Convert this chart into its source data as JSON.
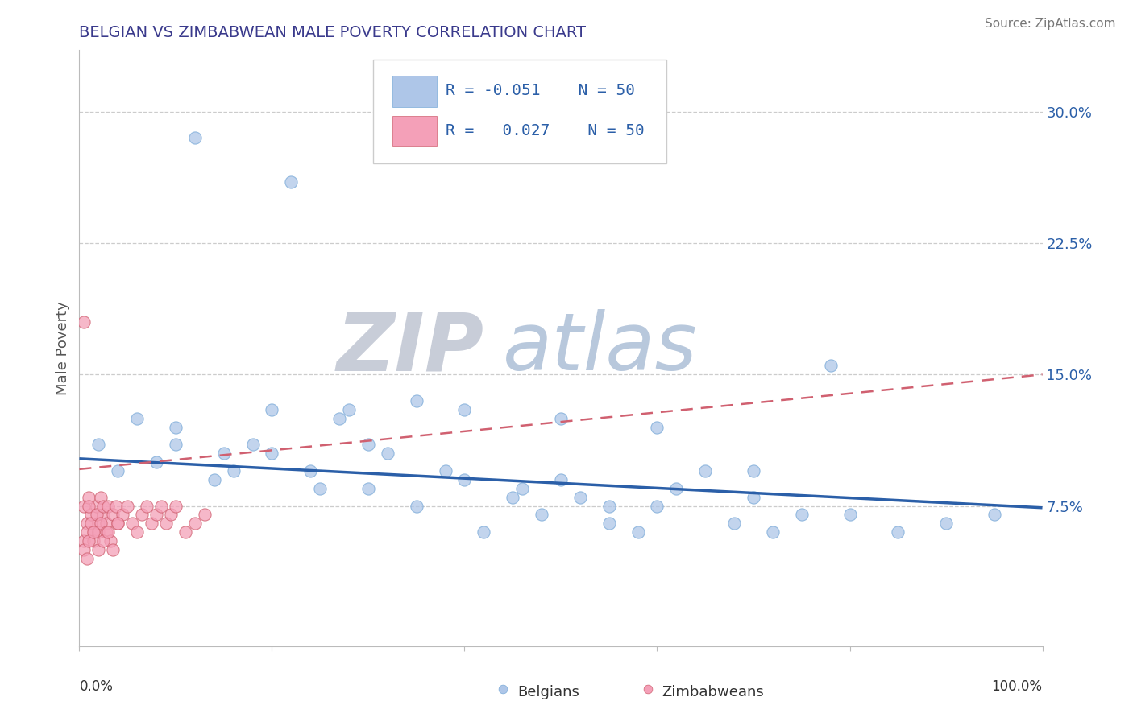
{
  "title": "BELGIAN VS ZIMBABWEAN MALE POVERTY CORRELATION CHART",
  "source_text": "Source: ZipAtlas.com",
  "ylabel": "Male Poverty",
  "yticks": [
    0.075,
    0.15,
    0.225,
    0.3
  ],
  "ytick_labels": [
    "7.5%",
    "15.0%",
    "22.5%",
    "30.0%"
  ],
  "xlim": [
    0.0,
    1.0
  ],
  "ylim": [
    -0.005,
    0.335
  ],
  "blue_color": "#AEC6E8",
  "pink_color": "#F4A0B8",
  "blue_line_color": "#2B5FA8",
  "pink_line_color": "#D06070",
  "title_color": "#3A3A8C",
  "source_color": "#777777",
  "watermark_zip": "ZIP",
  "watermark_atlas": "atlas",
  "watermark_zip_color": "#C8CDD8",
  "watermark_atlas_color": "#B8C8DC",
  "grid_color": "#CCCCCC",
  "tick_color": "#2B5FA8",
  "belgian_x": [
    0.02,
    0.04,
    0.06,
    0.08,
    0.1,
    0.12,
    0.14,
    0.16,
    0.18,
    0.2,
    0.22,
    0.24,
    0.25,
    0.27,
    0.28,
    0.3,
    0.32,
    0.35,
    0.38,
    0.4,
    0.42,
    0.45,
    0.46,
    0.48,
    0.5,
    0.52,
    0.55,
    0.58,
    0.6,
    0.62,
    0.65,
    0.68,
    0.7,
    0.72,
    0.75,
    0.78,
    0.8,
    0.85,
    0.9,
    0.95,
    0.1,
    0.15,
    0.2,
    0.3,
    0.35,
    0.4,
    0.5,
    0.55,
    0.6,
    0.7
  ],
  "belgian_y": [
    0.11,
    0.095,
    0.125,
    0.1,
    0.11,
    0.285,
    0.09,
    0.095,
    0.11,
    0.105,
    0.26,
    0.095,
    0.085,
    0.125,
    0.13,
    0.085,
    0.105,
    0.075,
    0.095,
    0.09,
    0.06,
    0.08,
    0.085,
    0.07,
    0.09,
    0.08,
    0.065,
    0.06,
    0.075,
    0.085,
    0.095,
    0.065,
    0.08,
    0.06,
    0.07,
    0.155,
    0.07,
    0.06,
    0.065,
    0.07,
    0.12,
    0.105,
    0.13,
    0.11,
    0.135,
    0.13,
    0.125,
    0.075,
    0.12,
    0.095
  ],
  "zimb_x": [
    0.005,
    0.008,
    0.01,
    0.012,
    0.015,
    0.018,
    0.02,
    0.022,
    0.025,
    0.028,
    0.005,
    0.008,
    0.01,
    0.012,
    0.015,
    0.018,
    0.02,
    0.022,
    0.025,
    0.028,
    0.03,
    0.032,
    0.035,
    0.038,
    0.04,
    0.045,
    0.05,
    0.055,
    0.06,
    0.065,
    0.07,
    0.075,
    0.08,
    0.085,
    0.09,
    0.095,
    0.1,
    0.11,
    0.12,
    0.13,
    0.005,
    0.008,
    0.01,
    0.015,
    0.02,
    0.025,
    0.03,
    0.035,
    0.04,
    0.005
  ],
  "zimb_y": [
    0.075,
    0.065,
    0.08,
    0.07,
    0.06,
    0.075,
    0.065,
    0.08,
    0.07,
    0.065,
    0.055,
    0.06,
    0.075,
    0.065,
    0.055,
    0.07,
    0.06,
    0.065,
    0.075,
    0.06,
    0.075,
    0.055,
    0.07,
    0.075,
    0.065,
    0.07,
    0.075,
    0.065,
    0.06,
    0.07,
    0.075,
    0.065,
    0.07,
    0.075,
    0.065,
    0.07,
    0.075,
    0.06,
    0.065,
    0.07,
    0.05,
    0.045,
    0.055,
    0.06,
    0.05,
    0.055,
    0.06,
    0.05,
    0.065,
    0.18
  ],
  "bel_trendline_x": [
    0.0,
    1.0
  ],
  "bel_trendline_y": [
    0.102,
    0.074
  ],
  "zimb_trendline_x": [
    0.0,
    1.0
  ],
  "zimb_trendline_y": [
    0.096,
    0.15
  ]
}
